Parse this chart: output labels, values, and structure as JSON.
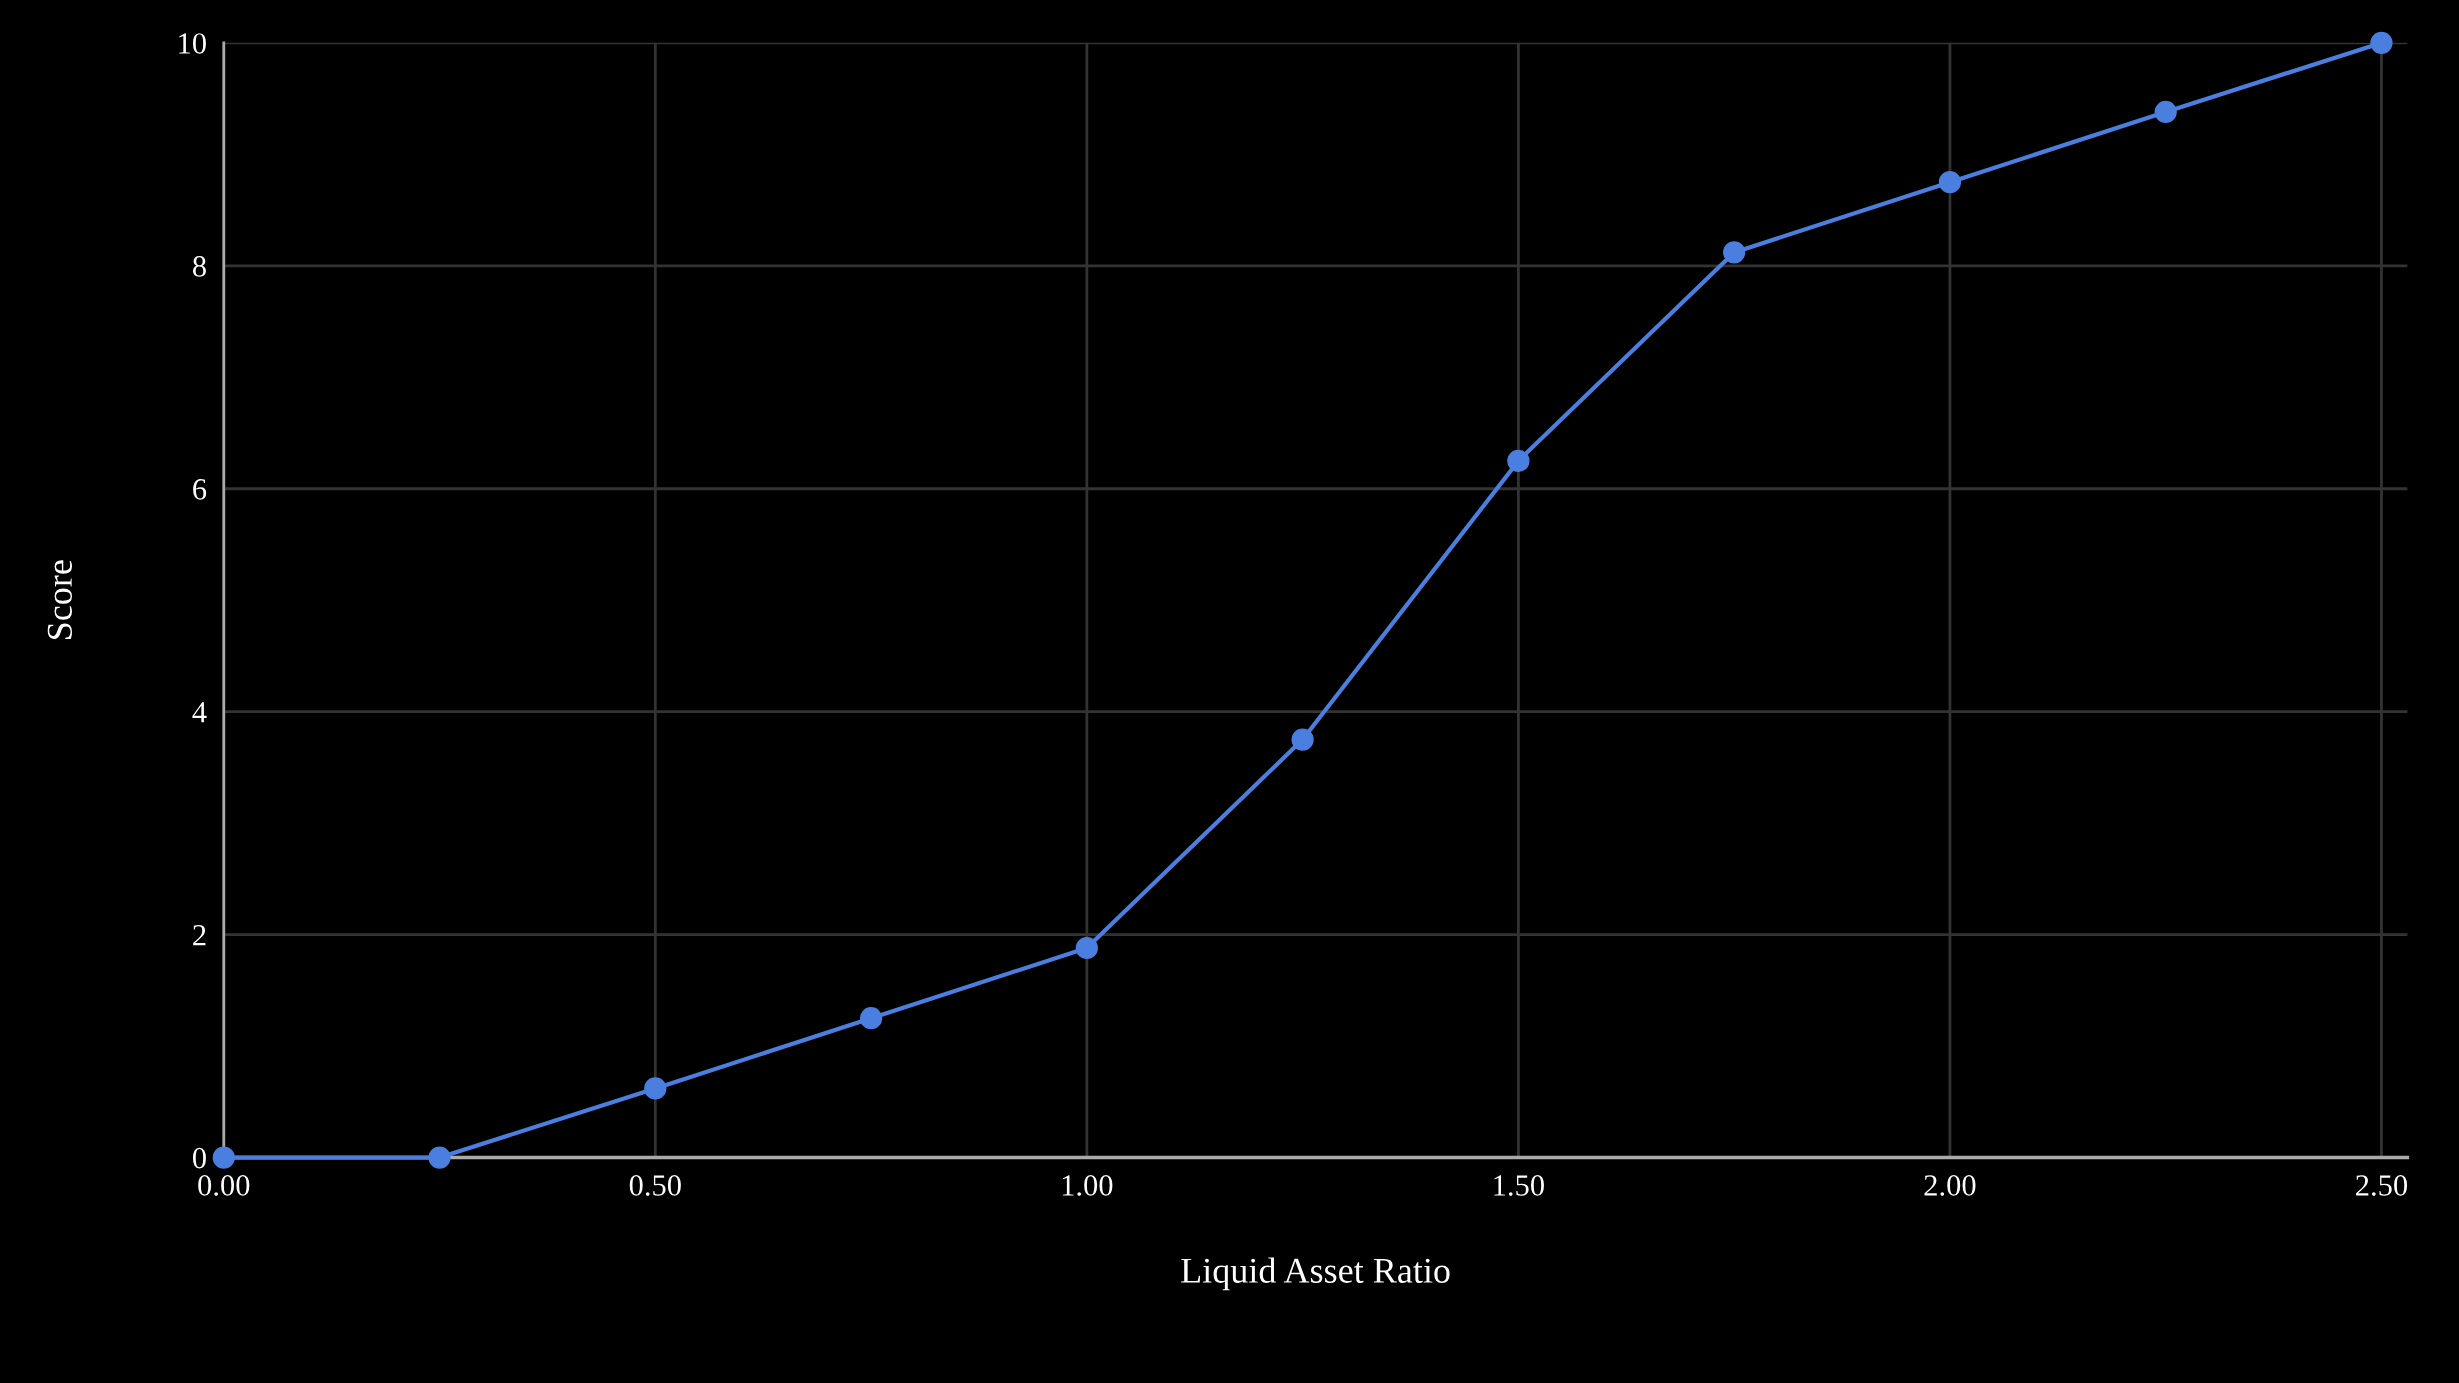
{
  "chart_data": {
    "type": "line",
    "xlabel": "Liquid Asset Ratio",
    "ylabel": "Score",
    "x": [
      0,
      0.25,
      0.5,
      0.75,
      1.0,
      1.25,
      1.5,
      1.75,
      2.0,
      2.25,
      2.5
    ],
    "series": [
      {
        "color": "#4a7fe0",
        "values": [
          0,
          0,
          0.62,
          1.25,
          1.88,
          3.75,
          6.25,
          8.12,
          8.75,
          9.38,
          10
        ]
      }
    ],
    "xlim": [
      0,
      2.53
    ],
    "ylim": [
      0,
      10
    ],
    "xticks": [
      {
        "value": 0,
        "label": "0.00"
      },
      {
        "value": 0.5,
        "label": "0.50"
      },
      {
        "value": 1.0,
        "label": "1.00"
      },
      {
        "value": 1.5,
        "label": "1.50"
      },
      {
        "value": 2.0,
        "label": "2.00"
      },
      {
        "value": 2.5,
        "label": "2.50"
      }
    ],
    "yticks": [
      0,
      2,
      4,
      6,
      8,
      10
    ],
    "grid": true,
    "marker": "circle",
    "line_style": "solid"
  }
}
